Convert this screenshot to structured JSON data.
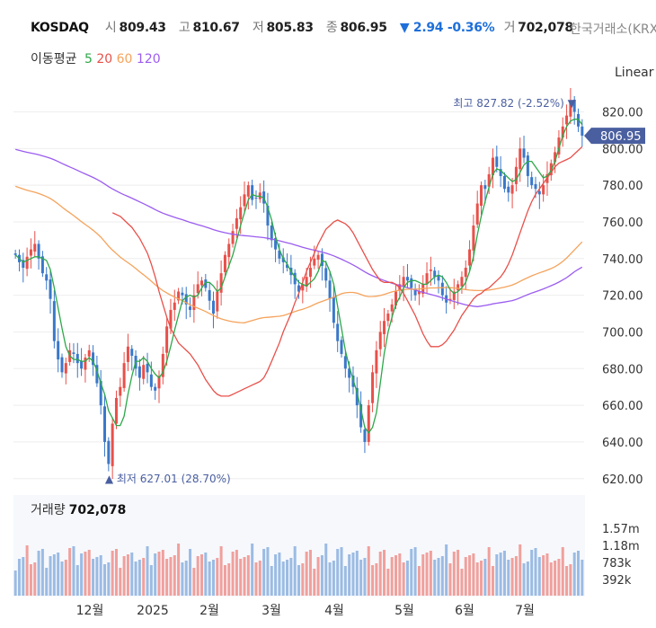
{
  "header": {
    "symbol": "KOSDAQ",
    "open_label": "시",
    "open": "809.43",
    "high_label": "고",
    "high": "810.67",
    "low_label": "저",
    "low": "805.83",
    "close_label": "종",
    "close": "806.95",
    "change": "▼ 2.94 -0.36%",
    "volume_label": "거",
    "volume": "702,078",
    "exchange": "한국거래소(KRX)"
  },
  "ma_legend": {
    "label": "이동평균",
    "items": [
      {
        "label": "5",
        "color": "#2ea84a"
      },
      {
        "label": "20",
        "color": "#e8504a"
      },
      {
        "label": "60",
        "color": "#f5a35c"
      },
      {
        "label": "120",
        "color": "#9b5cf0"
      }
    ]
  },
  "scale_mode": "Linear",
  "volume_panel": {
    "label": "거래량",
    "value": "702,078"
  },
  "chart_data": {
    "type": "candlestick",
    "y_ticks": [
      "820.00",
      "800.00",
      "780.00",
      "760.00",
      "740.00",
      "720.00",
      "700.00",
      "680.00",
      "660.00",
      "640.00",
      "620.00"
    ],
    "ylim": [
      614,
      832
    ],
    "x_ticks": [
      "12월",
      "2025",
      "2월",
      "3월",
      "4월",
      "5월",
      "6월",
      "7월"
    ],
    "last_price": "806.95",
    "max_annotation": "최고 827.82 (-2.52%) ▼",
    "min_annotation": "▲ 최저 627.01 (28.70%)",
    "volume_ticks": [
      "1.57m",
      "1.18m",
      "783k",
      "392k"
    ],
    "up_color": "#e8504a",
    "down_color": "#3a78c9",
    "closes": [
      742,
      738,
      735,
      741,
      745,
      748,
      740,
      732,
      728,
      718,
      695,
      685,
      678,
      683,
      690,
      688,
      683,
      680,
      686,
      690,
      682,
      672,
      660,
      640,
      628,
      650,
      664,
      670,
      683,
      692,
      687,
      680,
      675,
      682,
      678,
      670,
      668,
      676,
      688,
      703,
      712,
      716,
      722,
      720,
      715,
      712,
      720,
      726,
      728,
      724,
      717,
      710,
      722,
      732,
      742,
      748,
      755,
      762,
      768,
      775,
      780,
      772,
      773,
      776,
      770,
      758,
      750,
      745,
      740,
      738,
      735,
      731,
      726,
      722,
      726,
      730,
      735,
      740,
      742,
      736,
      728,
      718,
      705,
      695,
      688,
      680,
      675,
      670,
      660,
      648,
      640,
      660,
      678,
      690,
      700,
      706,
      710,
      715,
      722,
      726,
      730,
      728,
      724,
      720,
      722,
      726,
      732,
      734,
      730,
      728,
      720,
      716,
      718,
      722,
      726,
      730,
      735,
      745,
      758,
      770,
      780,
      778,
      786,
      795,
      790,
      785,
      778,
      776,
      780,
      790,
      800,
      795,
      785,
      780,
      778,
      775,
      780,
      786,
      792,
      798,
      806,
      812,
      818,
      826,
      820,
      812,
      807
    ],
    "ma5": [
      742,
      740,
      738,
      739,
      740,
      741,
      741,
      740,
      739,
      734,
      724,
      713,
      702,
      692,
      687,
      685,
      685,
      684,
      684,
      686,
      684,
      679,
      672,
      666,
      657,
      653,
      649,
      649,
      654,
      666,
      676,
      684,
      684,
      686,
      684,
      680,
      677,
      675,
      678,
      684,
      692,
      701,
      709,
      717,
      719,
      720,
      719,
      720,
      724,
      727,
      727,
      725,
      722,
      724,
      730,
      736,
      742,
      750,
      758,
      765,
      772,
      775,
      774,
      774,
      773,
      768,
      761,
      752,
      745,
      740,
      737,
      733,
      730,
      727,
      726,
      725,
      727,
      729,
      733,
      739,
      738,
      733,
      726,
      714,
      702,
      690,
      681,
      674,
      667,
      658,
      648,
      645,
      648,
      656,
      672,
      688,
      700,
      708,
      715,
      719,
      724,
      727,
      728,
      728,
      727,
      726,
      726,
      728,
      730,
      731,
      730,
      727,
      723,
      721,
      722,
      724,
      727,
      733,
      741,
      753,
      763,
      771,
      779,
      786,
      789,
      788,
      786,
      784,
      782,
      783,
      787,
      791,
      793,
      793,
      790,
      787,
      784,
      785,
      788,
      793,
      800,
      807,
      812,
      815,
      816,
      816,
      813
    ],
    "ma20": [
      765,
      764,
      763,
      761,
      759,
      757,
      754,
      751,
      747,
      743,
      737,
      730,
      722,
      715,
      708,
      702,
      698,
      694,
      692,
      690,
      688,
      685,
      682,
      678,
      674,
      671,
      668,
      666,
      665,
      665,
      665,
      666,
      667,
      668,
      669,
      670,
      671,
      672,
      673,
      675,
      679,
      684,
      689,
      694,
      700,
      705,
      710,
      716,
      721,
      727,
      733,
      738,
      743,
      748,
      752,
      756,
      758,
      760,
      761,
      760,
      759,
      757,
      754,
      750,
      746,
      742,
      738,
      734,
      731,
      728,
      727,
      727,
      727,
      726,
      724,
      721,
      717,
      713,
      709,
      704,
      699,
      695,
      692,
      692,
      692,
      693,
      695,
      698,
      701,
      705,
      709,
      712,
      715,
      718,
      720,
      721,
      723,
      724,
      726,
      728,
      730,
      733,
      737,
      742,
      748,
      754,
      760,
      766,
      771,
      775,
      778,
      781,
      784,
      787,
      790,
      792,
      793,
      794,
      795,
      797,
      799,
      801
    ]
  }
}
